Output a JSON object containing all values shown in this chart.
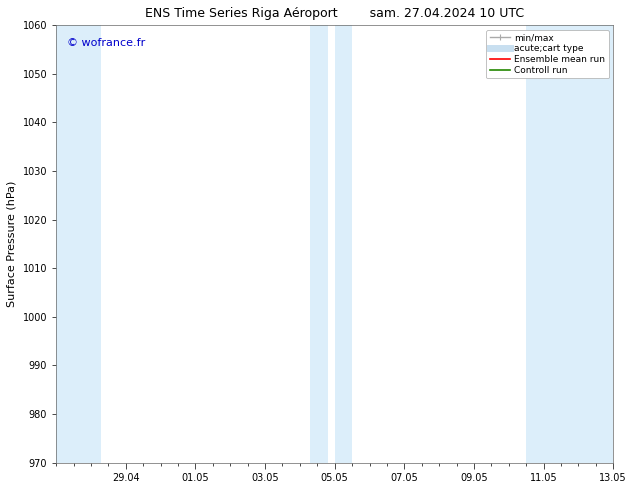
{
  "title_left": "ENS Time Series Riga Aéroport",
  "title_right": "sam. 27.04.2024 10 UTC",
  "ylabel": "Surface Pressure (hPa)",
  "watermark": "© wofrance.fr",
  "watermark_color": "#0000cc",
  "ylim": [
    970,
    1060
  ],
  "yticks": [
    970,
    980,
    990,
    1000,
    1010,
    1020,
    1030,
    1040,
    1050,
    1060
  ],
  "xtick_labels": [
    "29.04",
    "01.05",
    "03.05",
    "05.05",
    "07.05",
    "09.05",
    "11.05",
    "13.05"
  ],
  "bg_color": "#ffffff",
  "plot_bg_color": "#ffffff",
  "shade_color": "#dceefa",
  "legend_entries": [
    {
      "label": "min/max",
      "color": "#aaaaaa",
      "lw": 1
    },
    {
      "label": "acute;cart type",
      "color": "#c8dff0",
      "lw": 6
    },
    {
      "label": "Ensemble mean run",
      "color": "#ff0000",
      "lw": 1.5
    },
    {
      "label": "Controll run",
      "color": "#228800",
      "lw": 1.5
    }
  ],
  "title_fontsize": 9,
  "tick_fontsize": 7,
  "label_fontsize": 8,
  "watermark_fontsize": 8
}
